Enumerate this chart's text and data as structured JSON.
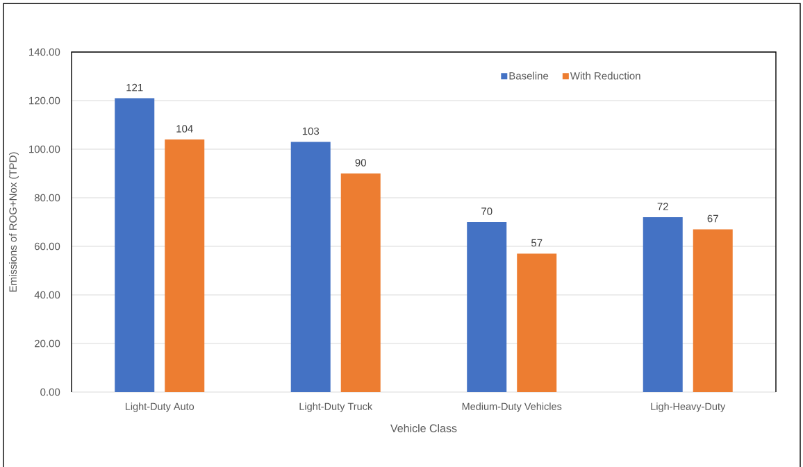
{
  "chart_data": {
    "type": "bar",
    "xlabel": "Vehicle Class",
    "ylabel": "Emissions of ROG+Nox (TPD)",
    "categories": [
      "Light-Duty Auto",
      "Light-Duty Truck",
      "Medium-Duty Vehicles",
      "Ligh-Heavy-Duty"
    ],
    "series": [
      {
        "name": "Baseline",
        "color": "#4472c4",
        "values": [
          121,
          103,
          70,
          72
        ]
      },
      {
        "name": "With Reduction",
        "color": "#ed7d31",
        "values": [
          104,
          90,
          57,
          67
        ]
      }
    ],
    "ylim": [
      0,
      140
    ],
    "yticks": [
      {
        "value": 0,
        "label": "0.00"
      },
      {
        "value": 20,
        "label": "20.00"
      },
      {
        "value": 40,
        "label": "40.00"
      },
      {
        "value": 60,
        "label": "60.00"
      },
      {
        "value": 80,
        "label": "80.00"
      },
      {
        "value": 100,
        "label": "100.00"
      },
      {
        "value": 120,
        "label": "120.00"
      },
      {
        "value": 140,
        "label": "140.00"
      }
    ],
    "grid": "y",
    "legend": "top right",
    "data_labels": true
  }
}
